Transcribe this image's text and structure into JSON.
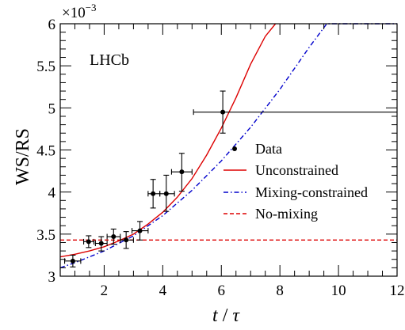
{
  "chart_data": {
    "type": "scatter",
    "title": "",
    "xlabel_main": "t",
    "xlabel_sep": " / ",
    "xlabel_unit": "τ",
    "ylabel": "WS/RS",
    "exponent_label": "×10",
    "exponent_power": "−3",
    "annotation": "LHCb",
    "xlim": [
      0.5,
      12
    ],
    "ylim": [
      3.0,
      6.0
    ],
    "xticks": [
      2,
      4,
      6,
      8,
      10,
      12
    ],
    "yticks": [
      3,
      3.5,
      4,
      4.5,
      5,
      5.5,
      6
    ],
    "ytick_labels": [
      "3",
      "3.5",
      "4",
      "4.5",
      "5",
      "5.5",
      "6"
    ],
    "grid": false,
    "legend_position": "right",
    "series": [
      {
        "name": "Data",
        "kind": "points",
        "color": "#000000",
        "points": [
          {
            "x": 0.93,
            "y": 3.18,
            "xlo": 0.65,
            "xhi": 1.2,
            "ylo": 3.11,
            "yhi": 3.25
          },
          {
            "x": 1.47,
            "y": 3.41,
            "xlo": 1.3,
            "xhi": 1.65,
            "ylo": 3.34,
            "yhi": 3.48
          },
          {
            "x": 1.9,
            "y": 3.39,
            "xlo": 1.7,
            "xhi": 2.1,
            "ylo": 3.3,
            "yhi": 3.47
          },
          {
            "x": 2.32,
            "y": 3.47,
            "xlo": 2.1,
            "xhi": 2.55,
            "ylo": 3.38,
            "yhi": 3.56
          },
          {
            "x": 2.75,
            "y": 3.43,
            "xlo": 2.55,
            "xhi": 3.0,
            "ylo": 3.33,
            "yhi": 3.53
          },
          {
            "x": 3.22,
            "y": 3.54,
            "xlo": 2.95,
            "xhi": 3.5,
            "ylo": 3.43,
            "yhi": 3.65
          },
          {
            "x": 3.67,
            "y": 3.98,
            "xlo": 3.5,
            "xhi": 3.9,
            "ylo": 3.81,
            "yhi": 4.15
          },
          {
            "x": 4.12,
            "y": 3.98,
            "xlo": 3.9,
            "xhi": 4.4,
            "ylo": 3.77,
            "yhi": 4.2
          },
          {
            "x": 4.65,
            "y": 4.24,
            "xlo": 4.3,
            "xhi": 5.0,
            "ylo": 4.01,
            "yhi": 4.46
          },
          {
            "x": 6.05,
            "y": 4.95,
            "xlo": 5.05,
            "xhi": 12.0,
            "ylo": 4.7,
            "yhi": 5.2
          }
        ]
      },
      {
        "name": "Unconstrained",
        "kind": "curve",
        "color": "#dd0000",
        "dash": "solid",
        "x": [
          0.5,
          1.0,
          1.5,
          2.0,
          2.5,
          3.0,
          3.5,
          4.0,
          4.5,
          5.0,
          5.5,
          6.0,
          6.5,
          7.0,
          7.5,
          7.85
        ],
        "y": [
          3.23,
          3.26,
          3.3,
          3.35,
          3.42,
          3.5,
          3.62,
          3.76,
          3.94,
          4.16,
          4.44,
          4.76,
          5.12,
          5.52,
          5.85,
          6.0
        ]
      },
      {
        "name": "Mixing-constrained",
        "kind": "curve",
        "color": "#0000cc",
        "dash": "dashdot",
        "x": [
          0.5,
          1.0,
          2.0,
          3.0,
          4.0,
          5.0,
          6.0,
          7.0,
          8.0,
          9.0,
          9.6,
          12.0
        ],
        "y": [
          3.1,
          3.16,
          3.3,
          3.48,
          3.72,
          4.02,
          4.37,
          4.77,
          5.22,
          5.72,
          6.0,
          6.0
        ]
      },
      {
        "name": "No-mixing",
        "kind": "curve",
        "color": "#dd0000",
        "dash": "dashed",
        "x": [
          0.5,
          12.0
        ],
        "y": [
          3.43,
          3.43
        ]
      }
    ]
  }
}
